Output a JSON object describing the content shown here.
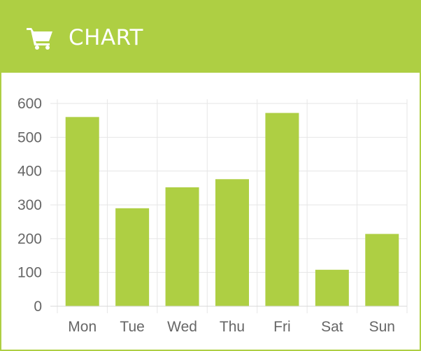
{
  "panel": {
    "title": "CHART",
    "icon": "shopping-cart-icon"
  },
  "colors": {
    "accent": "#aecf43",
    "bar": "#aecf43",
    "grid": "#e6e6e6",
    "tick_text": "#666666"
  },
  "chart_data": {
    "type": "bar",
    "title": "",
    "xlabel": "",
    "ylabel": "",
    "categories": [
      "Mon",
      "Tue",
      "Wed",
      "Thu",
      "Fri",
      "Sat",
      "Sun"
    ],
    "values": [
      560,
      290,
      352,
      376,
      572,
      108,
      214
    ],
    "ylim": [
      0,
      600
    ],
    "yticks": [
      "0",
      "100",
      "200",
      "300",
      "400",
      "500",
      "600"
    ],
    "grid": true,
    "legend": "none"
  }
}
